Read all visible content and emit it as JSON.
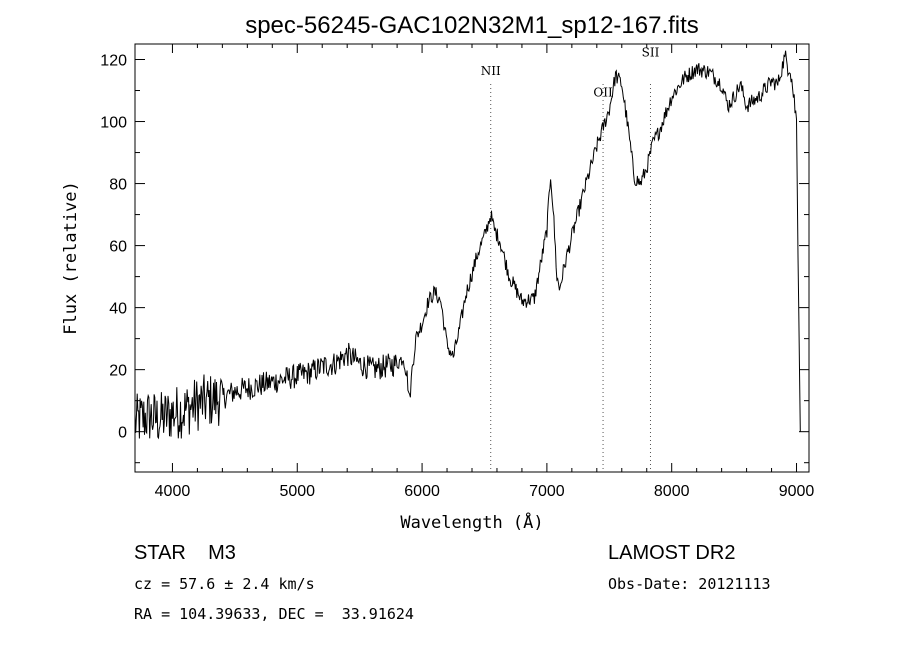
{
  "chart_data": {
    "type": "line",
    "title": "spec-56245-GAC102N32M1_sp12-167.fits",
    "xlabel": "Wavelength (Å)",
    "ylabel": "Flux (relative)",
    "xlim": [
      3700,
      9100
    ],
    "ylim": [
      -13,
      125
    ],
    "xticks": [
      4000,
      5000,
      6000,
      7000,
      8000,
      9000
    ],
    "yticks": [
      0,
      20,
      40,
      60,
      80,
      100,
      120
    ],
    "grid": false,
    "line_color": "#000000",
    "lines": [
      {
        "label": "NII",
        "x": 6550,
        "label_y": 115
      },
      {
        "label": "OII",
        "x": 7450,
        "label_y": 108
      },
      {
        "label": "SII",
        "x": 7830,
        "label_y": 121
      }
    ],
    "series": [
      {
        "x": [
          3700,
          3800,
          3900,
          4000,
          4100,
          4200,
          4300,
          4400,
          4500,
          4600,
          4700,
          4800,
          4900,
          5000,
          5100,
          5200,
          5300,
          5400,
          5500,
          5600,
          5700,
          5800,
          5850,
          5880,
          5900,
          5920,
          5950,
          6000,
          6050,
          6100,
          6150,
          6200,
          6250,
          6300,
          6350,
          6400,
          6450,
          6500,
          6550,
          6580,
          6620,
          6700,
          6800,
          6900,
          7000,
          7030,
          7050,
          7080,
          7100,
          7150,
          7200,
          7300,
          7400,
          7500,
          7550,
          7600,
          7650,
          7700,
          7750,
          7800,
          7850,
          7900,
          8000,
          8100,
          8200,
          8300,
          8400,
          8450,
          8500,
          8550,
          8600,
          8700,
          8800,
          8850,
          8900,
          8950,
          9000,
          9030
        ],
        "y": [
          3,
          5,
          4,
          6,
          7,
          9,
          10,
          11,
          13,
          14,
          15,
          16,
          17,
          18,
          19,
          21,
          22,
          25,
          22,
          20,
          21,
          22,
          24,
          18,
          10,
          20,
          30,
          35,
          42,
          45,
          42,
          28,
          24,
          33,
          44,
          51,
          58,
          63,
          70,
          65,
          62,
          50,
          42,
          43,
          65,
          83,
          72,
          50,
          46,
          55,
          63,
          78,
          92,
          104,
          115,
          112,
          98,
          82,
          80,
          85,
          93,
          97,
          108,
          114,
          117,
          116,
          112,
          105,
          108,
          112,
          105,
          108,
          113,
          112,
          120,
          118,
          100,
          0
        ]
      }
    ]
  },
  "info": {
    "star": "STAR    M3",
    "cz": "cz = 57.6 ± 2.4 km/s",
    "radec": "RA = 104.39633, DEC =  33.91624",
    "survey": "LAMOST DR2",
    "obsdate": "Obs-Date: 20121113"
  }
}
